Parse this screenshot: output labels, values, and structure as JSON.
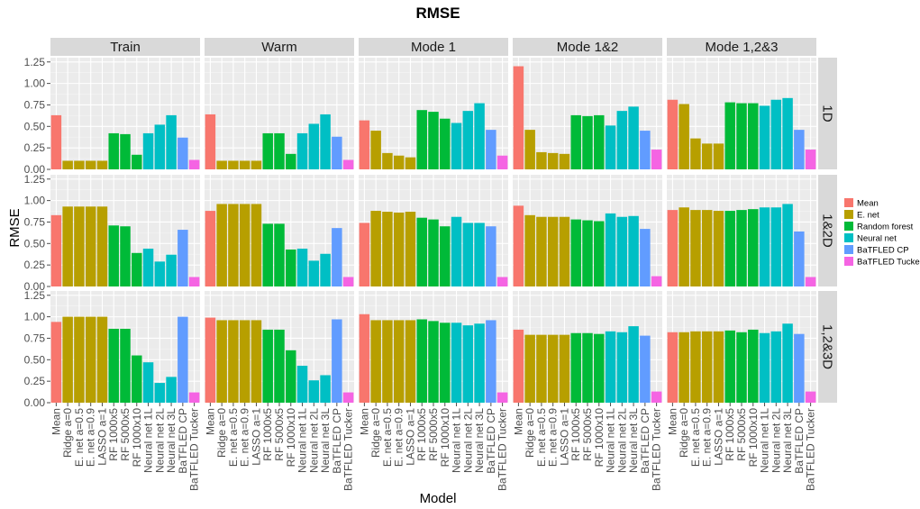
{
  "chart_data": {
    "type": "bar",
    "title": "RMSE",
    "xlabel": "Model",
    "ylabel": "RMSE",
    "ylim": [
      0,
      1.3
    ],
    "yticks": [
      "0.00",
      "0.25",
      "0.50",
      "0.75",
      "1.00",
      "1.25"
    ],
    "grid": true,
    "legend_position": "right",
    "columns": [
      "Train",
      "Warm",
      "Mode 1",
      "Mode 1&2",
      "Mode 1,2&3"
    ],
    "rows": [
      "1D",
      "1&2D",
      "1,2&3D"
    ],
    "categories": [
      "Mean",
      "Ridge a=0",
      "E. net a=0.5",
      "E. net a=0.9",
      "LASSO a=1",
      "RF 1000x5",
      "RF 5000x5",
      "RF 1000x10",
      "Neural net 1L",
      "Neural net 2L",
      "Neural net 3L",
      "BaTFLED CP",
      "BaTFLED Tucker"
    ],
    "category_group": [
      0,
      1,
      1,
      1,
      1,
      2,
      2,
      2,
      3,
      3,
      3,
      4,
      5
    ],
    "legend": [
      {
        "label": "Mean",
        "color": "#F8766D"
      },
      {
        "label": "E. net",
        "color": "#B79F00"
      },
      {
        "label": "Random forest",
        "color": "#00BA38"
      },
      {
        "label": "Neural net",
        "color": "#00BFC4"
      },
      {
        "label": "BaTFLED CP",
        "color": "#619CFF"
      },
      {
        "label": "BaTFLED Tucker",
        "color": "#F564E3"
      }
    ],
    "panels": [
      [
        [
          0.63,
          0.1,
          0.1,
          0.1,
          0.1,
          0.42,
          0.41,
          0.17,
          0.42,
          0.52,
          0.63,
          0.37,
          0.11
        ],
        [
          0.64,
          0.1,
          0.1,
          0.1,
          0.1,
          0.42,
          0.42,
          0.18,
          0.42,
          0.53,
          0.64,
          0.38,
          0.11
        ],
        [
          0.57,
          0.45,
          0.19,
          0.16,
          0.14,
          0.69,
          0.67,
          0.59,
          0.54,
          0.68,
          0.77,
          0.46,
          0.16
        ],
        [
          1.2,
          0.46,
          0.2,
          0.19,
          0.18,
          0.63,
          0.62,
          0.63,
          0.51,
          0.68,
          0.73,
          0.45,
          0.23
        ],
        [
          0.81,
          0.76,
          0.36,
          0.3,
          0.3,
          0.78,
          0.77,
          0.77,
          0.74,
          0.81,
          0.83,
          0.46,
          0.23
        ]
      ],
      [
        [
          0.83,
          0.93,
          0.93,
          0.93,
          0.93,
          0.71,
          0.7,
          0.39,
          0.44,
          0.29,
          0.37,
          0.66,
          0.11
        ],
        [
          0.88,
          0.96,
          0.96,
          0.96,
          0.96,
          0.73,
          0.73,
          0.43,
          0.44,
          0.3,
          0.38,
          0.68,
          0.11
        ],
        [
          0.74,
          0.88,
          0.87,
          0.86,
          0.87,
          0.8,
          0.78,
          0.7,
          0.81,
          0.74,
          0.74,
          0.7,
          0.11
        ],
        [
          0.94,
          0.83,
          0.81,
          0.81,
          0.81,
          0.78,
          0.77,
          0.76,
          0.85,
          0.81,
          0.82,
          0.67,
          0.12
        ],
        [
          0.89,
          0.92,
          0.89,
          0.89,
          0.88,
          0.88,
          0.89,
          0.9,
          0.92,
          0.92,
          0.96,
          0.64,
          0.11
        ]
      ],
      [
        [
          0.94,
          1.0,
          1.0,
          1.0,
          1.0,
          0.86,
          0.86,
          0.55,
          0.47,
          0.23,
          0.3,
          1.0,
          0.12
        ],
        [
          0.99,
          0.96,
          0.96,
          0.96,
          0.96,
          0.85,
          0.85,
          0.61,
          0.43,
          0.26,
          0.32,
          0.97,
          0.12
        ],
        [
          1.03,
          0.96,
          0.96,
          0.96,
          0.96,
          0.97,
          0.95,
          0.93,
          0.93,
          0.9,
          0.92,
          0.96,
          0.12
        ],
        [
          0.85,
          0.79,
          0.79,
          0.79,
          0.79,
          0.81,
          0.81,
          0.8,
          0.83,
          0.82,
          0.89,
          0.78,
          0.13
        ],
        [
          0.82,
          0.82,
          0.83,
          0.83,
          0.83,
          0.84,
          0.82,
          0.85,
          0.81,
          0.83,
          0.92,
          0.8,
          0.13
        ]
      ]
    ]
  }
}
